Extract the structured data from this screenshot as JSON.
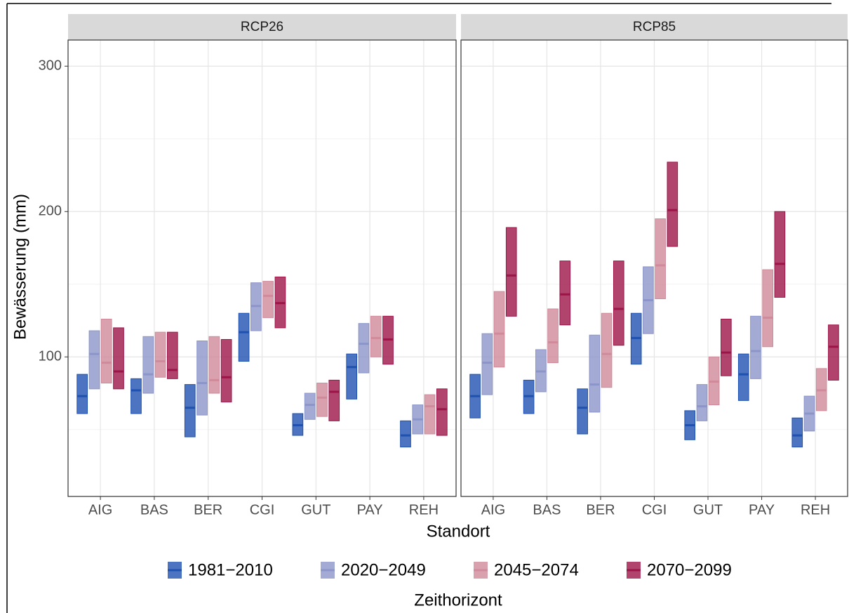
{
  "chart_data": {
    "type": "crossbar",
    "y_label": "Bewässerung (mm)",
    "x_label": "Standort",
    "legend_title": "Zeithorizont",
    "categories": [
      "AIG",
      "BAS",
      "BER",
      "CGI",
      "GUT",
      "PAY",
      "REH"
    ],
    "ylim": [
      4,
      318
    ],
    "yticks": [
      100,
      200,
      300
    ],
    "y_minor_grid": [
      50,
      150,
      250
    ],
    "grid": true,
    "legend": "bottom",
    "series": [
      {
        "name": "1981−2010",
        "color": "#1f51b0"
      },
      {
        "name": "2020−2049",
        "color": "#8c95c9"
      },
      {
        "name": "2045−2074",
        "color": "#d08a9a"
      },
      {
        "name": "2070−2099",
        "color": "#9c1548"
      }
    ],
    "panels": [
      {
        "title": "RCP26",
        "series": [
          {
            "low": [
              61,
              61,
              45,
              97,
              46,
              71,
              38
            ],
            "mid": [
              73,
              77,
              65,
              117,
              53,
              93,
              46
            ],
            "high": [
              88,
              85,
              81,
              130,
              61,
              102,
              56
            ]
          },
          {
            "low": [
              78,
              75,
              60,
              118,
              57,
              89,
              47
            ],
            "mid": [
              102,
              88,
              82,
              135,
              67,
              109,
              57
            ],
            "high": [
              118,
              114,
              111,
              151,
              75,
              123,
              67
            ]
          },
          {
            "low": [
              82,
              86,
              75,
              127,
              59,
              100,
              47
            ],
            "mid": [
              96,
              97,
              84,
              142,
              72,
              113,
              66
            ],
            "high": [
              126,
              117,
              114,
              152,
              82,
              128,
              74
            ]
          },
          {
            "low": [
              78,
              85,
              69,
              120,
              56,
              95,
              46
            ],
            "mid": [
              90,
              91,
              86,
              137,
              76,
              112,
              64
            ],
            "high": [
              120,
              117,
              112,
              155,
              84,
              128,
              78
            ]
          }
        ]
      },
      {
        "title": "RCP85",
        "series": [
          {
            "low": [
              58,
              61,
              47,
              95,
              43,
              70,
              38
            ],
            "mid": [
              73,
              73,
              65,
              113,
              53,
              88,
              46
            ],
            "high": [
              88,
              84,
              78,
              130,
              63,
              102,
              58
            ]
          },
          {
            "low": [
              74,
              76,
              62,
              116,
              56,
              85,
              49
            ],
            "mid": [
              96,
              90,
              81,
              139,
              66,
              104,
              61
            ],
            "high": [
              116,
              105,
              115,
              162,
              81,
              128,
              73
            ]
          },
          {
            "low": [
              93,
              96,
              79,
              140,
              67,
              107,
              63
            ],
            "mid": [
              116,
              110,
              102,
              163,
              83,
              127,
              77
            ],
            "high": [
              145,
              133,
              130,
              195,
              100,
              160,
              92
            ]
          },
          {
            "low": [
              128,
              122,
              108,
              176,
              87,
              141,
              84
            ],
            "mid": [
              156,
              143,
              133,
              201,
              103,
              164,
              107
            ],
            "high": [
              189,
              166,
              166,
              234,
              126,
              200,
              122
            ]
          }
        ]
      }
    ]
  }
}
